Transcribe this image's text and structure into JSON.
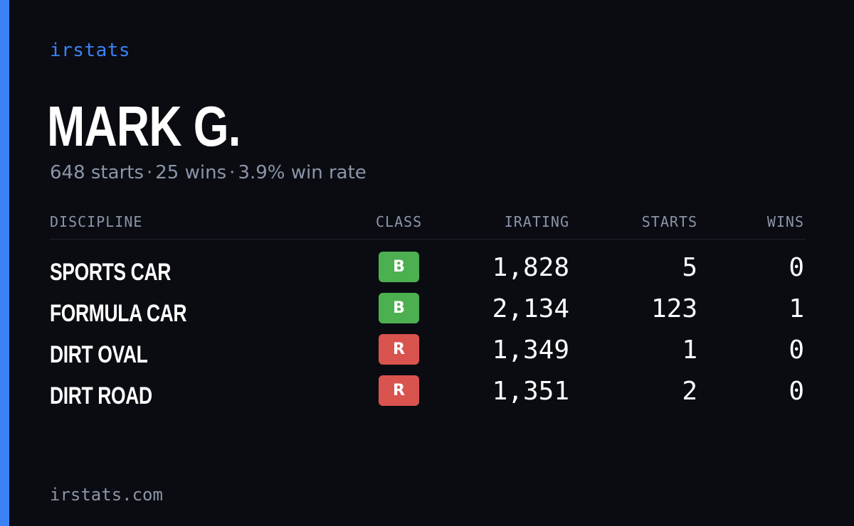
{
  "brand": "irstats",
  "player": {
    "name": "MARK G."
  },
  "summary": {
    "starts": "648 starts",
    "wins": "25 wins",
    "win_rate": "3.9% win rate",
    "separator": "·"
  },
  "table": {
    "headers": {
      "discipline": "DISCIPLINE",
      "class": "CLASS",
      "irating": "IRATING",
      "starts": "STARTS",
      "wins": "WINS"
    },
    "rows": [
      {
        "discipline": "SPORTS CAR",
        "class": "B",
        "class_color": "#4caf50",
        "irating": "1,828",
        "starts": "5",
        "wins": "0"
      },
      {
        "discipline": "FORMULA CAR",
        "class": "B",
        "class_color": "#4caf50",
        "irating": "2,134",
        "starts": "123",
        "wins": "1"
      },
      {
        "discipline": "DIRT OVAL",
        "class": "R",
        "class_color": "#d9534f",
        "irating": "1,349",
        "starts": "1",
        "wins": "0"
      },
      {
        "discipline": "DIRT ROAD",
        "class": "R",
        "class_color": "#d9534f",
        "irating": "1,351",
        "starts": "2",
        "wins": "0"
      }
    ]
  },
  "footer": {
    "url": "irstats.com"
  },
  "colors": {
    "accent": "#3b82f6",
    "background": "#0a0c12",
    "muted": "#8b95a7"
  }
}
